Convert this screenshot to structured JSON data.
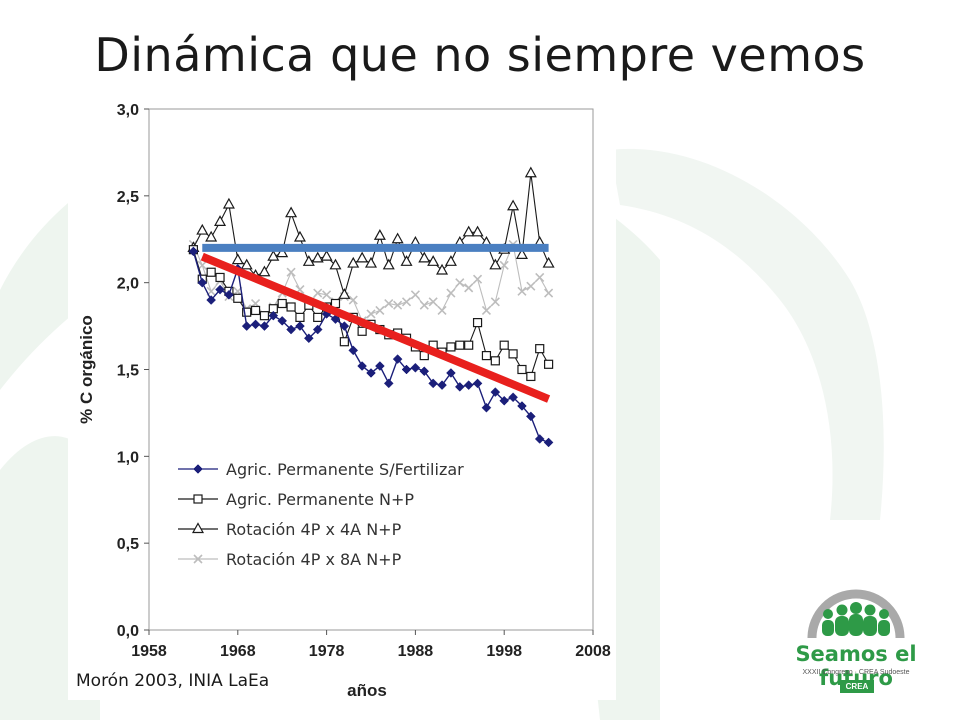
{
  "slide": {
    "title": "Dinámica que no siempre vemos",
    "source_note": "Morón 2003, INIA LaEa"
  },
  "logo": {
    "name": "Seamos el futuro",
    "subtitle": "XXXII Congreso · CREA Sudoeste",
    "badge": "CREA",
    "color": "#2e9a47"
  },
  "chart_data": {
    "type": "line",
    "xlabel": "años",
    "ylabel": "% C orgánico",
    "xlim": [
      1958,
      2008
    ],
    "ylim": [
      0.0,
      3.0
    ],
    "x_ticks": [
      "1958",
      "1968",
      "1978",
      "1988",
      "1998",
      "2008"
    ],
    "y_ticks": [
      "0,0",
      "0,5",
      "1,0",
      "1,5",
      "2,0",
      "2,5",
      "3,0"
    ],
    "grid": false,
    "legend_position": "lower-left",
    "series": [
      {
        "name": "Agric. Permanente S/Fertilizar",
        "marker": "diamond-filled",
        "color": "#1b1f7a",
        "x": [
          1963,
          1964,
          1965,
          1966,
          1967,
          1968,
          1969,
          1970,
          1971,
          1972,
          1973,
          1974,
          1975,
          1976,
          1977,
          1978,
          1979,
          1980,
          1981,
          1982,
          1983,
          1984,
          1985,
          1986,
          1987,
          1988,
          1989,
          1990,
          1991,
          1992,
          1993,
          1994,
          1995,
          1996,
          1997,
          1998,
          1999,
          2000,
          2001,
          2002,
          2003
        ],
        "values": [
          2.18,
          2.0,
          1.9,
          1.96,
          1.93,
          2.08,
          1.75,
          1.76,
          1.75,
          1.81,
          1.78,
          1.73,
          1.75,
          1.68,
          1.73,
          1.82,
          1.79,
          1.75,
          1.61,
          1.52,
          1.48,
          1.52,
          1.42,
          1.56,
          1.5,
          1.51,
          1.49,
          1.42,
          1.41,
          1.48,
          1.4,
          1.41,
          1.42,
          1.28,
          1.37,
          1.32,
          1.34,
          1.29,
          1.23,
          1.1,
          1.08
        ]
      },
      {
        "name": "Agric. Permanente N+P",
        "marker": "square-open",
        "color": "#1a1a1a",
        "x": [
          1963,
          1964,
          1965,
          1966,
          1967,
          1968,
          1969,
          1970,
          1971,
          1972,
          1973,
          1974,
          1975,
          1976,
          1977,
          1978,
          1979,
          1980,
          1981,
          1982,
          1983,
          1984,
          1985,
          1986,
          1987,
          1988,
          1989,
          1990,
          1991,
          1992,
          1993,
          1994,
          1995,
          1996,
          1997,
          1998,
          1999,
          2000,
          2001,
          2002,
          2003
        ],
        "values": [
          2.19,
          2.02,
          2.06,
          2.03,
          1.95,
          1.91,
          1.83,
          1.84,
          1.81,
          1.85,
          1.88,
          1.86,
          1.8,
          1.87,
          1.8,
          1.86,
          1.88,
          1.66,
          1.8,
          1.72,
          1.76,
          1.73,
          1.7,
          1.71,
          1.68,
          1.63,
          1.58,
          1.64,
          1.6,
          1.63,
          1.64,
          1.64,
          1.77,
          1.58,
          1.55,
          1.64,
          1.59,
          1.5,
          1.46,
          1.62,
          1.53
        ]
      },
      {
        "name": "Rotación 4P x 4A N+P",
        "marker": "triangle-open",
        "color": "#1a1a1a",
        "x": [
          1963,
          1964,
          1965,
          1966,
          1967,
          1968,
          1969,
          1970,
          1971,
          1972,
          1973,
          1974,
          1975,
          1976,
          1977,
          1978,
          1979,
          1980,
          1981,
          1982,
          1983,
          1984,
          1985,
          1986,
          1987,
          1988,
          1989,
          1990,
          1991,
          1992,
          1993,
          1994,
          1995,
          1996,
          1997,
          1998,
          1999,
          2000,
          2001,
          2002,
          2003
        ],
        "values": [
          2.2,
          2.3,
          2.26,
          2.35,
          2.45,
          2.13,
          2.1,
          2.04,
          2.06,
          2.15,
          2.17,
          2.4,
          2.26,
          2.12,
          2.14,
          2.15,
          2.1,
          1.93,
          2.11,
          2.14,
          2.11,
          2.27,
          2.1,
          2.25,
          2.12,
          2.23,
          2.14,
          2.12,
          2.07,
          2.12,
          2.23,
          2.29,
          2.29,
          2.23,
          2.1,
          2.19,
          2.44,
          2.16,
          2.63,
          2.23,
          2.11
        ]
      },
      {
        "name": "Rotación 4P x 8A N+P",
        "marker": "x",
        "color": "#bdbdbd",
        "x": [
          1963,
          1964,
          1965,
          1966,
          1967,
          1968,
          1969,
          1970,
          1971,
          1972,
          1973,
          1974,
          1975,
          1976,
          1977,
          1978,
          1979,
          1980,
          1981,
          1982,
          1983,
          1984,
          1985,
          1986,
          1987,
          1988,
          1989,
          1990,
          1991,
          1992,
          1993,
          1994,
          1995,
          1996,
          1997,
          1998,
          1999,
          2000,
          2001,
          2002,
          2003
        ],
        "values": [
          2.22,
          2.1,
          1.95,
          2.01,
          1.92,
          1.95,
          1.85,
          1.88,
          1.81,
          1.86,
          1.94,
          2.06,
          1.96,
          1.88,
          1.94,
          1.93,
          1.89,
          1.92,
          1.9,
          1.78,
          1.82,
          1.84,
          1.88,
          1.87,
          1.89,
          1.93,
          1.87,
          1.89,
          1.84,
          1.94,
          2.0,
          1.97,
          2.02,
          1.84,
          1.89,
          2.1,
          2.22,
          1.95,
          1.98,
          2.03,
          1.94
        ]
      }
    ],
    "annotations": [
      {
        "type": "reference-line",
        "color": "#4a7fc1",
        "x": [
          1964,
          2003
        ],
        "values": [
          2.2,
          2.2
        ]
      },
      {
        "type": "trend-line",
        "color": "#e8201d",
        "x": [
          1964,
          2003
        ],
        "values": [
          2.15,
          1.33
        ]
      }
    ]
  }
}
